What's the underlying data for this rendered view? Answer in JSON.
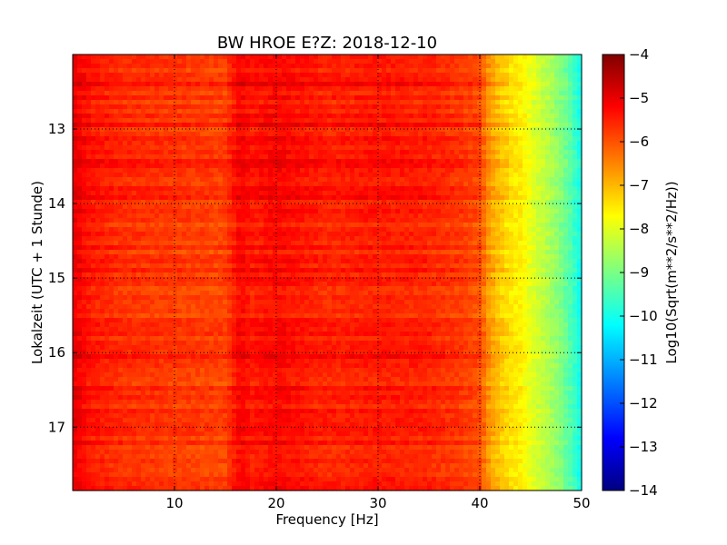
{
  "chart_data": {
    "type": "heatmap",
    "title": "BW HROE E?Z: 2018-12-10",
    "xlabel": "Frequency [Hz]",
    "ylabel": "Lokalzeit (UTC + 1 Stunde)",
    "xlim": [
      0,
      50
    ],
    "ylim": [
      17.85,
      12.0
    ],
    "x_ticks": [
      10,
      20,
      30,
      40,
      50
    ],
    "y_ticks": [
      13,
      14,
      15,
      16,
      17
    ],
    "grid": true,
    "colorbar": {
      "label": "Log10(Sqrt(m**2/s**2/Hz))",
      "range": [
        -14,
        -4
      ],
      "ticks": [
        -4,
        -5,
        -6,
        -7,
        -8,
        -9,
        -10,
        -11,
        -12,
        -13,
        -14
      ],
      "colormap": "jet"
    },
    "frequency_profile": {
      "x": [
        0,
        1,
        2,
        5,
        10,
        15,
        16.5,
        17.5,
        20,
        25,
        30,
        35,
        38,
        40,
        41,
        42,
        43,
        44,
        45,
        46,
        47,
        48,
        49,
        50
      ],
      "values": [
        -5.0,
        -5.3,
        -5.5,
        -5.7,
        -5.8,
        -5.9,
        -5.2,
        -5.5,
        -5.3,
        -5.6,
        -5.5,
        -5.6,
        -5.8,
        -6.0,
        -6.8,
        -7.2,
        -7.5,
        -7.6,
        -8.0,
        -8.3,
        -8.6,
        -9.0,
        -9.5,
        -10.2
      ]
    }
  }
}
